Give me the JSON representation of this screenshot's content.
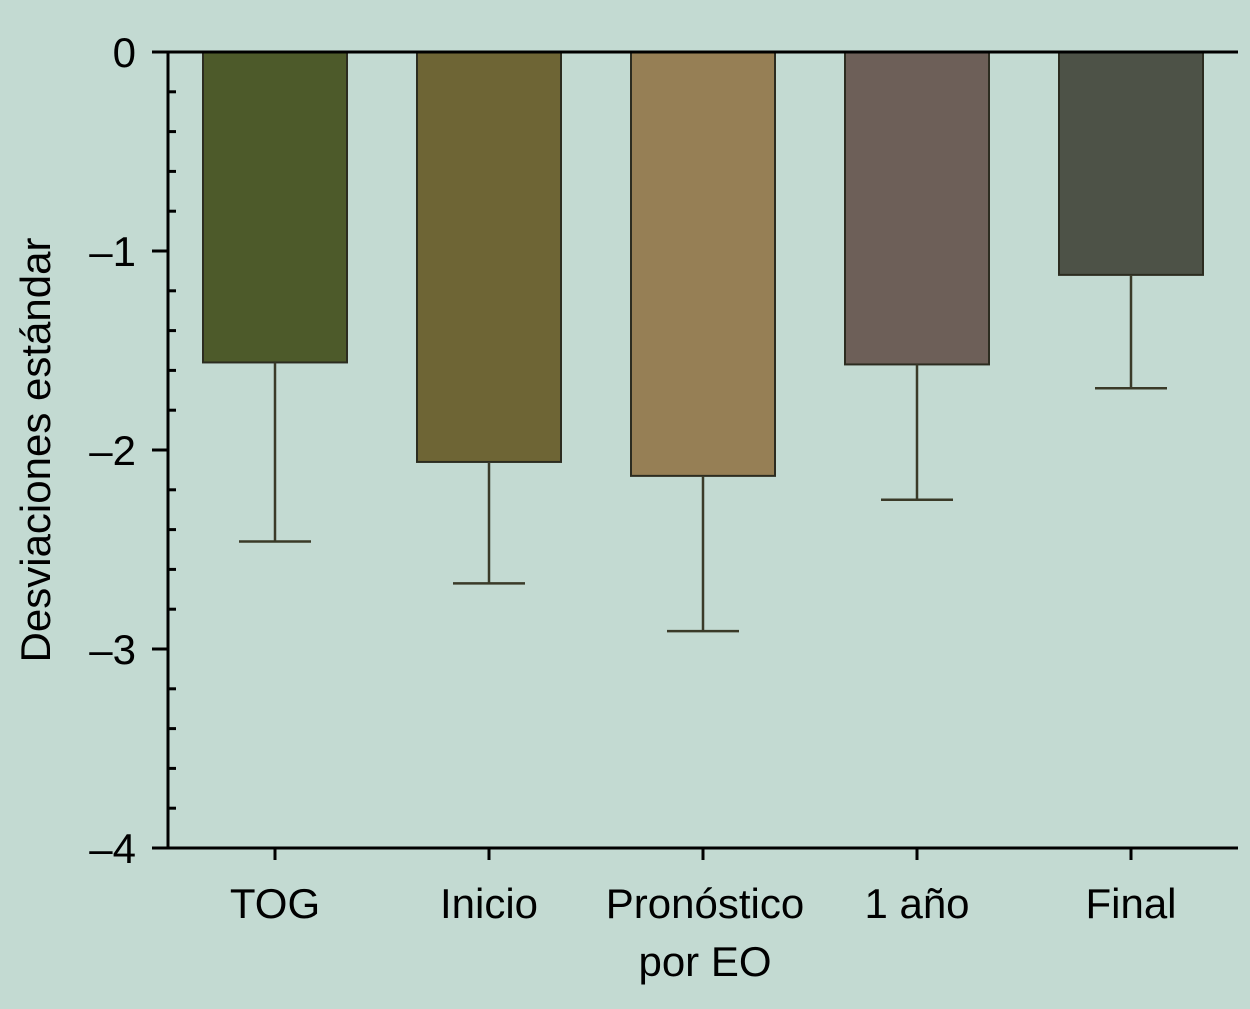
{
  "chart_data": {
    "type": "bar",
    "title": "",
    "xlabel": "",
    "ylabel": "Desviaciones estándar",
    "ylim": [
      -4,
      0
    ],
    "yticks": [
      "0",
      "–1",
      "–2",
      "–3",
      "–4"
    ],
    "ytick_values": [
      0,
      -1,
      -2,
      -3,
      -4
    ],
    "categories": [
      [
        "TOG"
      ],
      [
        "Inicio"
      ],
      [
        "Pronóstico",
        "por EO"
      ],
      [
        "1 año"
      ],
      [
        "Final"
      ]
    ],
    "values": [
      -1.56,
      -2.06,
      -2.13,
      -1.57,
      -1.12
    ],
    "error_low": [
      -2.46,
      -2.67,
      -2.91,
      -2.25,
      -1.69
    ],
    "colors": [
      "#4d5a2a",
      "#6e6535",
      "#967f55",
      "#6d5f58",
      "#4d5247"
    ],
    "grid": false,
    "legend": "none"
  }
}
